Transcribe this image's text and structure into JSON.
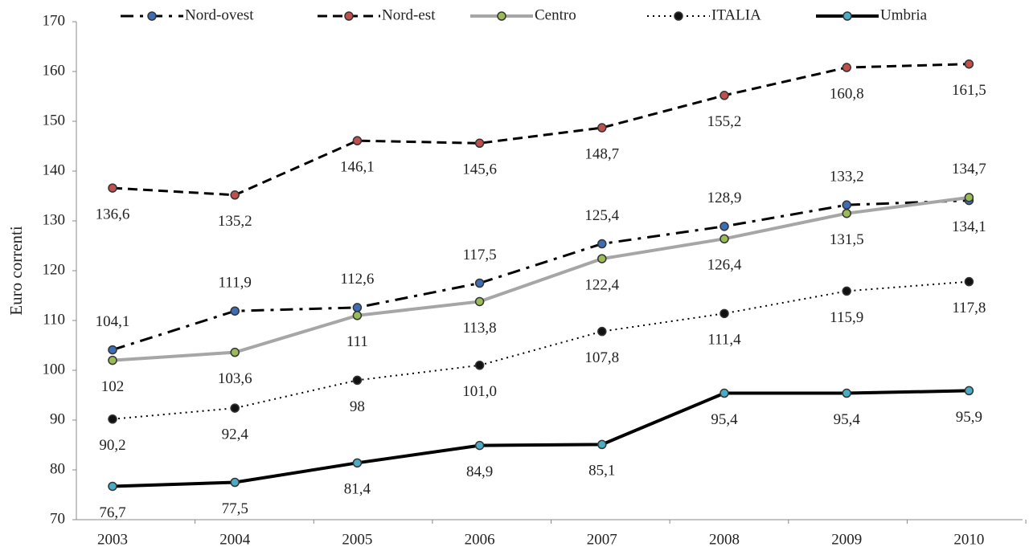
{
  "chart_data": {
    "type": "line",
    "ylabel": "Euro correnti",
    "categories": [
      "2003",
      "2004",
      "2005",
      "2006",
      "2007",
      "2008",
      "2009",
      "2010"
    ],
    "ylim": [
      70,
      170
    ],
    "yticks": [
      70,
      80,
      90,
      100,
      110,
      120,
      130,
      140,
      150,
      160,
      170
    ],
    "legend": "top",
    "series": [
      {
        "name": "Nord-ovest",
        "color": "#000000",
        "marker_color": "#3d6db5",
        "line_style": "dashdot",
        "width": 3,
        "values": [
          104.1,
          111.9,
          112.6,
          117.5,
          125.4,
          128.9,
          133.2,
          134.1
        ],
        "value_labels": [
          "104,1",
          "111,9",
          "112,6",
          "117,5",
          "125,4",
          "128,9",
          "133,2",
          "134,1"
        ]
      },
      {
        "name": "Nord-est",
        "color": "#000000",
        "marker_color": "#c0504d",
        "line_style": "dashed",
        "width": 3,
        "values": [
          136.6,
          135.2,
          146.1,
          145.6,
          148.7,
          155.2,
          160.8,
          161.5
        ],
        "value_labels": [
          "136,6",
          "135,2",
          "146,1",
          "145,6",
          "148,7",
          "155,2",
          "160,8",
          "161,5"
        ]
      },
      {
        "name": "Centro",
        "color": "#a6a6a6",
        "marker_color": "#9bbb59",
        "line_style": "solid",
        "width": 4,
        "values": [
          102,
          103.6,
          111,
          113.8,
          122.4,
          126.4,
          131.5,
          134.7
        ],
        "value_labels": [
          "102",
          "103,6",
          "111",
          "113,8",
          "122,4",
          "126,4",
          "131,5",
          "134,7"
        ]
      },
      {
        "name": "ITALIA",
        "color": "#000000",
        "marker_color": "#111111",
        "line_style": "dotted",
        "width": 2,
        "values": [
          90.2,
          92.4,
          98,
          101.0,
          107.8,
          111.4,
          115.9,
          117.8
        ],
        "value_labels": [
          "90,2",
          "92,4",
          "98",
          "101,0",
          "107,8",
          "111,4",
          "115,9",
          "117,8"
        ]
      },
      {
        "name": "Umbria",
        "color": "#000000",
        "marker_color": "#4bacc6",
        "line_style": "solid",
        "width": 4,
        "values": [
          76.7,
          77.5,
          81.4,
          84.9,
          85.1,
          95.4,
          95.4,
          95.9
        ],
        "value_labels": [
          "76,7",
          "77,5",
          "81,4",
          "84,9",
          "85,1",
          "95,4",
          "95,4",
          "95,9"
        ]
      }
    ]
  }
}
